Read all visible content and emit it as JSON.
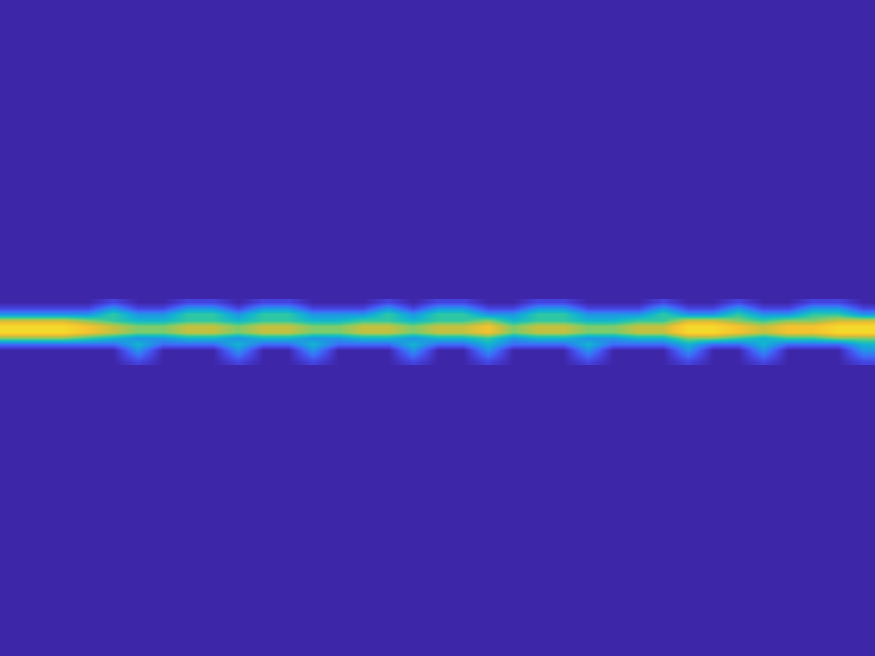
{
  "chart_data": {
    "type": "heatmap",
    "tick_labels": false,
    "x": [
      12.5,
      37.5,
      62.5,
      87.5,
      112.5,
      137.5,
      162.5,
      187.5,
      212.5,
      237.5,
      262.5,
      287.5,
      312.5,
      337.5,
      362.5,
      387.5,
      412.5,
      437.5,
      462.5,
      487.5,
      512.5,
      537.5,
      562.5,
      587.5,
      612.5,
      637.5,
      662.5,
      687.5,
      712.5,
      737.5,
      762.5,
      787.5,
      812.5,
      837.5,
      862.5
    ],
    "y": [
      302,
      308,
      314,
      320,
      326,
      332,
      338,
      344,
      350,
      356,
      362
    ],
    "xlim": [
      0,
      875
    ],
    "ylim": [
      656,
      0
    ],
    "zlim": [
      0,
      10
    ],
    "z": [
      [
        0,
        0,
        0,
        0,
        1,
        0,
        0,
        1,
        1,
        0,
        1,
        1,
        0,
        0,
        0,
        1,
        0,
        1,
        1,
        0,
        0,
        1,
        1,
        0,
        0,
        0,
        1,
        0,
        0,
        1,
        0,
        0,
        1,
        1,
        0
      ],
      [
        1,
        1,
        1,
        1,
        3,
        1,
        1,
        3,
        3,
        1,
        3,
        3,
        1,
        1,
        1,
        3,
        1,
        3,
        3,
        1,
        1,
        3,
        3,
        1,
        1,
        1,
        3,
        1,
        1,
        3,
        1,
        1,
        3,
        3,
        1
      ],
      [
        3,
        3,
        3,
        3,
        5,
        3,
        3,
        5,
        5,
        3,
        5,
        5,
        3,
        3,
        3,
        5,
        3,
        5,
        5,
        3,
        3,
        5,
        5,
        3,
        3,
        3,
        5,
        3,
        3,
        5,
        3,
        3,
        5,
        5,
        3
      ],
      [
        7,
        7,
        7,
        6,
        5,
        4,
        4,
        5,
        5,
        4,
        5,
        5,
        4,
        4,
        5,
        5,
        4,
        5,
        5,
        6,
        4,
        5,
        5,
        4,
        4,
        5,
        5,
        7,
        7,
        6,
        5,
        6,
        6,
        7,
        7
      ],
      [
        9,
        9,
        9,
        8,
        7,
        6,
        6,
        7,
        7,
        6,
        7,
        7,
        6,
        6,
        7,
        7,
        6,
        7,
        7,
        8,
        6,
        7,
        7,
        6,
        6,
        7,
        7,
        9,
        9,
        8,
        7,
        8,
        8,
        9,
        9
      ],
      [
        9,
        9,
        9,
        8,
        7,
        6,
        6,
        7,
        7,
        6,
        7,
        7,
        6,
        6,
        7,
        7,
        6,
        7,
        7,
        8,
        6,
        7,
        7,
        6,
        6,
        7,
        7,
        9,
        9,
        8,
        7,
        8,
        8,
        9,
        9
      ],
      [
        6,
        6,
        6,
        5,
        4,
        3,
        3,
        4,
        4,
        3,
        4,
        4,
        3,
        3,
        4,
        4,
        3,
        4,
        4,
        5,
        3,
        4,
        4,
        3,
        3,
        4,
        4,
        6,
        6,
        5,
        4,
        5,
        5,
        6,
        6
      ],
      [
        2,
        2,
        2,
        2,
        2,
        4,
        2,
        2,
        2,
        4,
        2,
        2,
        4,
        2,
        2,
        2,
        4,
        2,
        2,
        4,
        2,
        2,
        2,
        4,
        2,
        2,
        2,
        4,
        2,
        2,
        4,
        2,
        2,
        2,
        4
      ],
      [
        0,
        0,
        0,
        0,
        0,
        3,
        0,
        0,
        0,
        3,
        0,
        0,
        3,
        0,
        0,
        0,
        3,
        0,
        0,
        3,
        0,
        0,
        0,
        3,
        0,
        0,
        0,
        3,
        0,
        0,
        3,
        0,
        0,
        0,
        3
      ],
      [
        0,
        0,
        0,
        0,
        0,
        2,
        0,
        0,
        0,
        2,
        0,
        0,
        2,
        0,
        0,
        0,
        2,
        0,
        0,
        2,
        0,
        0,
        0,
        2,
        0,
        0,
        0,
        2,
        0,
        0,
        2,
        0,
        0,
        0,
        2
      ],
      [
        0,
        0,
        0,
        0,
        0,
        1,
        0,
        0,
        0,
        1,
        0,
        0,
        1,
        0,
        0,
        0,
        1,
        0,
        0,
        1,
        0,
        0,
        0,
        1,
        0,
        0,
        0,
        1,
        0,
        0,
        1,
        0,
        0,
        0,
        1
      ]
    ]
  }
}
